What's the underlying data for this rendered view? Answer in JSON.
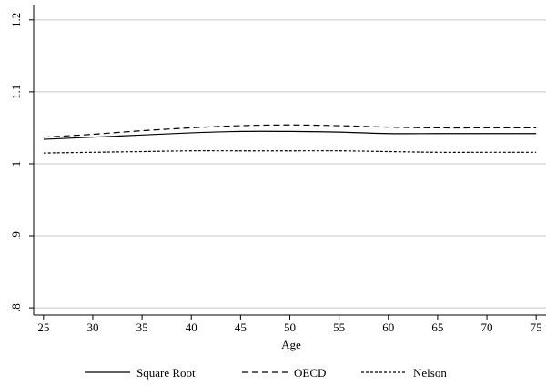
{
  "chart_data": {
    "type": "line",
    "title": "",
    "xlabel": "Age",
    "ylabel": "",
    "xlim": [
      24,
      76
    ],
    "ylim": [
      0.79,
      1.22
    ],
    "x_ticks": [
      25,
      30,
      35,
      40,
      45,
      50,
      55,
      60,
      65,
      70,
      75
    ],
    "x_tick_labels": [
      "25",
      "30",
      "35",
      "40",
      "45",
      "50",
      "55",
      "60",
      "65",
      "70",
      "75"
    ],
    "y_ticks": [
      0.8,
      0.9,
      1.0,
      1.1,
      1.2
    ],
    "y_tick_labels": [
      ".8",
      ".9",
      "1",
      "1.1",
      "1.2"
    ],
    "grid": "horizontal",
    "legend_position": "bottom",
    "x": [
      25,
      30,
      35,
      40,
      45,
      50,
      55,
      60,
      65,
      70,
      75
    ],
    "series": [
      {
        "name": "Square Root",
        "style": "solid",
        "values": [
          1.034,
          1.037,
          1.04,
          1.043,
          1.045,
          1.045,
          1.044,
          1.042,
          1.042,
          1.042,
          1.042
        ]
      },
      {
        "name": "OECD",
        "style": "dashed",
        "values": [
          1.037,
          1.041,
          1.046,
          1.05,
          1.053,
          1.054,
          1.053,
          1.051,
          1.05,
          1.05,
          1.05
        ]
      },
      {
        "name": "Nelson",
        "style": "dotted",
        "values": [
          1.015,
          1.016,
          1.017,
          1.018,
          1.018,
          1.018,
          1.018,
          1.017,
          1.016,
          1.016,
          1.016
        ]
      }
    ]
  }
}
